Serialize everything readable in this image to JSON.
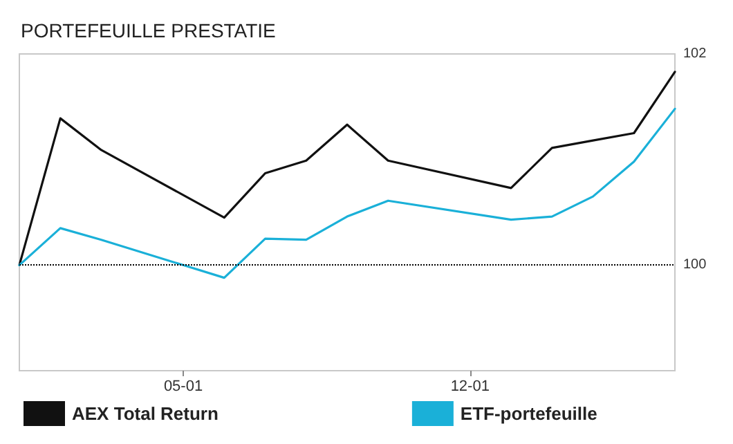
{
  "chart_data": {
    "type": "line",
    "title": "PORTEFEUILLE PRESTATIE",
    "x": [
      "--01-01",
      "--01-02",
      "--01-03",
      "--01-06",
      "--01-07",
      "--01-08",
      "--01-09",
      "--01-10",
      "--01-13",
      "--01-14",
      "--01-15",
      "--01-16",
      "--01-17"
    ],
    "series": [
      {
        "name": "AEX Total Return",
        "color": "#111111",
        "values": [
          100,
          101.39,
          101.09,
          100.45,
          100.87,
          100.99,
          101.33,
          100.99,
          100.73,
          101.11,
          101.18,
          101.25,
          101.83
        ]
      },
      {
        "name": "ETF-portefeuille",
        "color": "#1ab0d8",
        "values": [
          100,
          100.35,
          100.24,
          99.88,
          100.25,
          100.24,
          100.46,
          100.61,
          100.43,
          100.46,
          100.65,
          100.98,
          101.48
        ]
      }
    ],
    "xlim": [
      "--01-01",
      "--01-17"
    ],
    "xticks": [
      {
        "value": "--01-05",
        "label": "05-01"
      },
      {
        "value": "--01-12",
        "label": "12-01"
      }
    ],
    "ylim": [
      99,
      102
    ],
    "yticks": [
      100,
      102
    ],
    "ref_lines": [
      {
        "axis": "y",
        "value": 100,
        "color": "#000000",
        "line_style": "dotted"
      }
    ],
    "grid": false,
    "legend": "bottom",
    "marker": "none",
    "line_style": "solid"
  }
}
